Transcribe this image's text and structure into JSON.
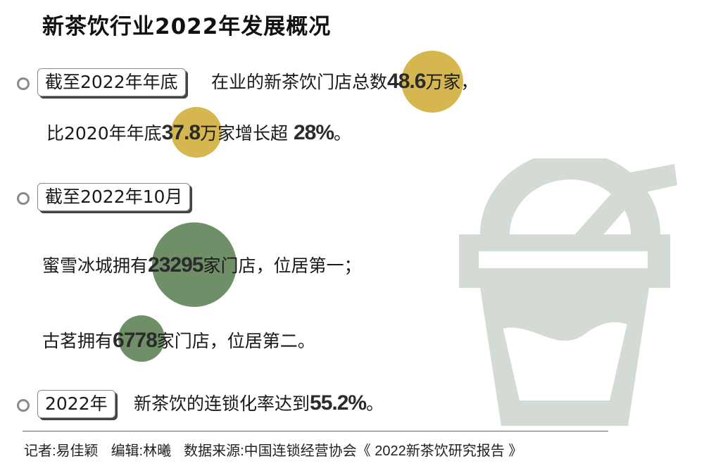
{
  "title": "新茶饮行业2022年发展概况",
  "section1": {
    "tag": "截至2022年年底",
    "line1_text": "在业的新茶饮门店总数",
    "line1_num": "48.6",
    "line1_suffix": "万家，",
    "line2_prefix": "比2020年年底",
    "line2_num": "37.8",
    "line2_mid": "万家增长超",
    "line2_pct": "28%",
    "line2_end": "。"
  },
  "section2": {
    "tag": "截至2022年10月",
    "line1_prefix": "蜜雪冰城拥有",
    "line1_num": "23295",
    "line1_suffix": "家门店，位居第一；",
    "line2_prefix": "古茗拥有",
    "line2_num": "6778",
    "line2_suffix": "家门店，位居第二。"
  },
  "section3": {
    "tag": "2022年",
    "text": "新茶饮的连锁化率达到",
    "num": "55.2%",
    "end": "。"
  },
  "footer": {
    "reporter": "记者:易佳颖",
    "editor": "编辑:林曦",
    "source": "数据来源:中国连锁经营协会《 2022新茶饮研究报告 》"
  },
  "colors": {
    "gold": "#d6b74f",
    "green": "#6f8f69",
    "cup": "#d3dbd4",
    "bullet": "#8a8a8a"
  },
  "icons": [
    "bullet-circle-icon",
    "bubble-tea-cup-icon"
  ]
}
